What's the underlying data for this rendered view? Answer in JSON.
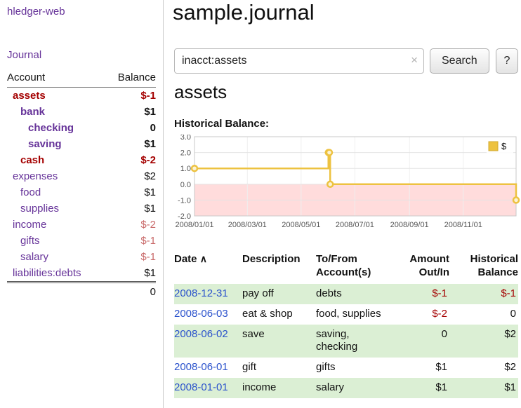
{
  "colors": {
    "link_purple": "#663399",
    "date_blue": "#2a52cc",
    "negative": "#a40000",
    "negative_light": "#c96a6a",
    "row_green": "#dbefd4",
    "chart_line": "#edc240",
    "chart_negative_region": "#ffdcdc"
  },
  "sidebar": {
    "app_title": "hledger-web",
    "nav": {
      "journal": "Journal"
    },
    "table": {
      "header": {
        "account": "Account",
        "balance": "Balance"
      },
      "accounts": [
        {
          "name": "assets",
          "balance": "$-1",
          "indent": 1,
          "bold": true,
          "name_class": "neg",
          "balance_class": "neg"
        },
        {
          "name": "bank",
          "balance": "$1",
          "indent": 2,
          "bold": true,
          "name_class": "",
          "balance_class": ""
        },
        {
          "name": "checking",
          "balance": "0",
          "indent": 3,
          "bold": true,
          "name_class": "",
          "balance_class": ""
        },
        {
          "name": "saving",
          "balance": "$1",
          "indent": 3,
          "bold": true,
          "name_class": "",
          "balance_class": ""
        },
        {
          "name": "cash",
          "balance": "$-2",
          "indent": 2,
          "bold": true,
          "name_class": "neg",
          "balance_class": "neg"
        },
        {
          "name": "expenses",
          "balance": "$2",
          "indent": 1,
          "bold": false,
          "name_class": "",
          "balance_class": ""
        },
        {
          "name": "food",
          "balance": "$1",
          "indent": 2,
          "bold": false,
          "name_class": "",
          "balance_class": ""
        },
        {
          "name": "supplies",
          "balance": "$1",
          "indent": 2,
          "bold": false,
          "name_class": "",
          "balance_class": ""
        },
        {
          "name": "income",
          "balance": "$-2",
          "indent": 1,
          "bold": false,
          "name_class": "",
          "balance_class": "neg-light"
        },
        {
          "name": "gifts",
          "balance": "$-1",
          "indent": 2,
          "bold": false,
          "name_class": "",
          "balance_class": "neg-light"
        },
        {
          "name": "salary",
          "balance": "$-1",
          "indent": 2,
          "bold": false,
          "name_class": "",
          "balance_class": "neg-light"
        },
        {
          "name": "liabilities:debts",
          "balance": "$1",
          "indent": 1,
          "bold": false,
          "name_class": "",
          "balance_class": ""
        }
      ],
      "total": "0"
    }
  },
  "main": {
    "title": "sample.journal",
    "search": {
      "value": "inacct:assets",
      "clear_icon": "×",
      "search_button": "Search",
      "help_button": "?"
    },
    "account_heading": "assets",
    "chart_title": "Historical Balance:"
  },
  "chart_data": {
    "type": "line",
    "step": true,
    "title": "Historical Balance",
    "legend_position": "top-right",
    "xrange": [
      "2008-01-01",
      "2008-12-31"
    ],
    "ylim": [
      -2,
      3
    ],
    "yticks": [
      {
        "v": 3,
        "label": "3.0"
      },
      {
        "v": 2,
        "label": "2.0"
      },
      {
        "v": 1,
        "label": "1.0"
      },
      {
        "v": 0,
        "label": "0.0"
      },
      {
        "v": -1,
        "label": "-1.0"
      },
      {
        "v": -2,
        "label": "-2.0"
      }
    ],
    "xticks": [
      {
        "date": "2008-01-01",
        "label": "2008/01/01"
      },
      {
        "date": "2008-03-01",
        "label": "2008/03/01"
      },
      {
        "date": "2008-05-01",
        "label": "2008/05/01"
      },
      {
        "date": "2008-07-01",
        "label": "2008/07/01"
      },
      {
        "date": "2008-09-01",
        "label": "2008/09/01"
      },
      {
        "date": "2008-11-01",
        "label": "2008/11/01"
      }
    ],
    "negative_region_color": "#ffdcdc",
    "grid": true,
    "series": [
      {
        "name": "$",
        "color": "#edc240",
        "points": [
          {
            "date": "2008-01-01",
            "v": 1
          },
          {
            "date": "2008-06-01",
            "v": 2
          },
          {
            "date": "2008-06-02",
            "v": 2
          },
          {
            "date": "2008-06-03",
            "v": 0
          },
          {
            "date": "2008-12-31",
            "v": -1
          }
        ]
      }
    ]
  },
  "register": {
    "sort_icon": "∧",
    "columns": [
      {
        "label": "Date"
      },
      {
        "label": "Description"
      },
      {
        "label": "To/From\nAccount(s)"
      },
      {
        "label": "Amount\nOut/In"
      },
      {
        "label": "Historical\nBalance"
      }
    ],
    "rows": [
      {
        "date": "2008-12-31",
        "description": "pay off",
        "accounts": "debts",
        "amount": "$-1",
        "balance": "$-1"
      },
      {
        "date": "2008-06-03",
        "description": "eat & shop",
        "accounts": "food, supplies",
        "amount": "$-2",
        "balance": "0"
      },
      {
        "date": "2008-06-02",
        "description": "save",
        "accounts": "saving,\nchecking",
        "amount": "0",
        "balance": "$2"
      },
      {
        "date": "2008-06-01",
        "description": "gift",
        "accounts": "gifts",
        "amount": "$1",
        "balance": "$2"
      },
      {
        "date": "2008-01-01",
        "description": "income",
        "accounts": "salary",
        "amount": "$1",
        "balance": "$1"
      }
    ]
  }
}
